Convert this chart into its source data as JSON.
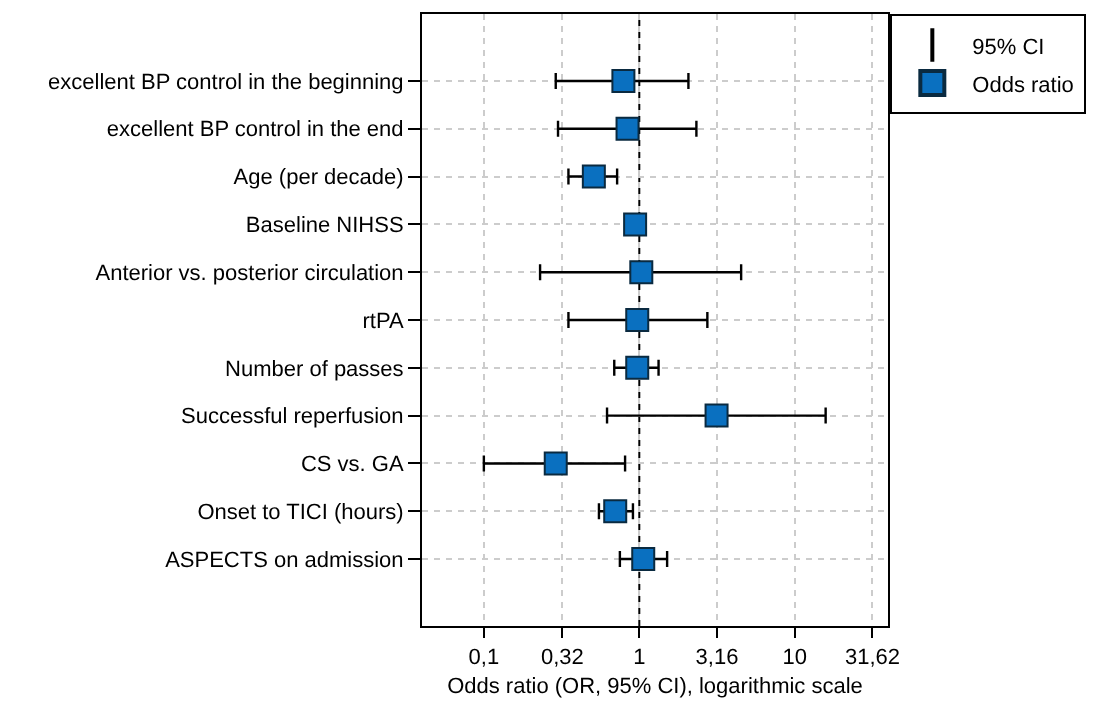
{
  "chart_data": {
    "type": "scatter",
    "orientation": "horizontal",
    "xlabel": "Odds ratio (OR, 95% CI), logarithmic scale",
    "categories": [
      "excellent BP control in the beginning",
      "excellent BP control in the end",
      "Age (per decade)",
      "Baseline NIHSS",
      "Anterior vs. posterior circulation",
      "rtPA",
      "Number of passes",
      "Successful reperfusion",
      "CS vs. GA",
      "Onset to TICI (hours)",
      "ASPECTS on admission"
    ],
    "series": [
      {
        "name": "Odds ratio",
        "color": "#0a70c0",
        "values": [
          0.79,
          0.84,
          0.51,
          0.94,
          1.03,
          0.97,
          0.97,
          3.14,
          0.29,
          0.7,
          1.06
        ],
        "errors": [
          [
            0.29,
            2.07
          ],
          [
            0.3,
            2.33
          ],
          [
            0.35,
            0.72
          ],
          null,
          [
            0.23,
            4.52
          ],
          [
            0.35,
            2.74
          ],
          [
            0.69,
            1.33
          ],
          [
            0.62,
            15.8
          ],
          [
            0.1,
            0.81
          ],
          [
            0.55,
            0.91
          ],
          [
            0.75,
            1.51
          ]
        ]
      }
    ],
    "annotations": [
      "95% CI"
    ],
    "log": "x",
    "xlim": [
      0.04,
      39.8
    ],
    "xticks": [
      {
        "value": 0.1,
        "label": "0,1"
      },
      {
        "value": 0.32,
        "label": "0,32"
      },
      1,
      {
        "value": 3.16,
        "label": "3,16"
      },
      10,
      {
        "value": 31.62,
        "label": "31,62"
      }
    ],
    "ref_lines": [
      {
        "axis": "x",
        "value": 1,
        "color": "#000000",
        "line_style": "dotted"
      }
    ],
    "grid": true,
    "legend": "top right",
    "marker": "square"
  }
}
